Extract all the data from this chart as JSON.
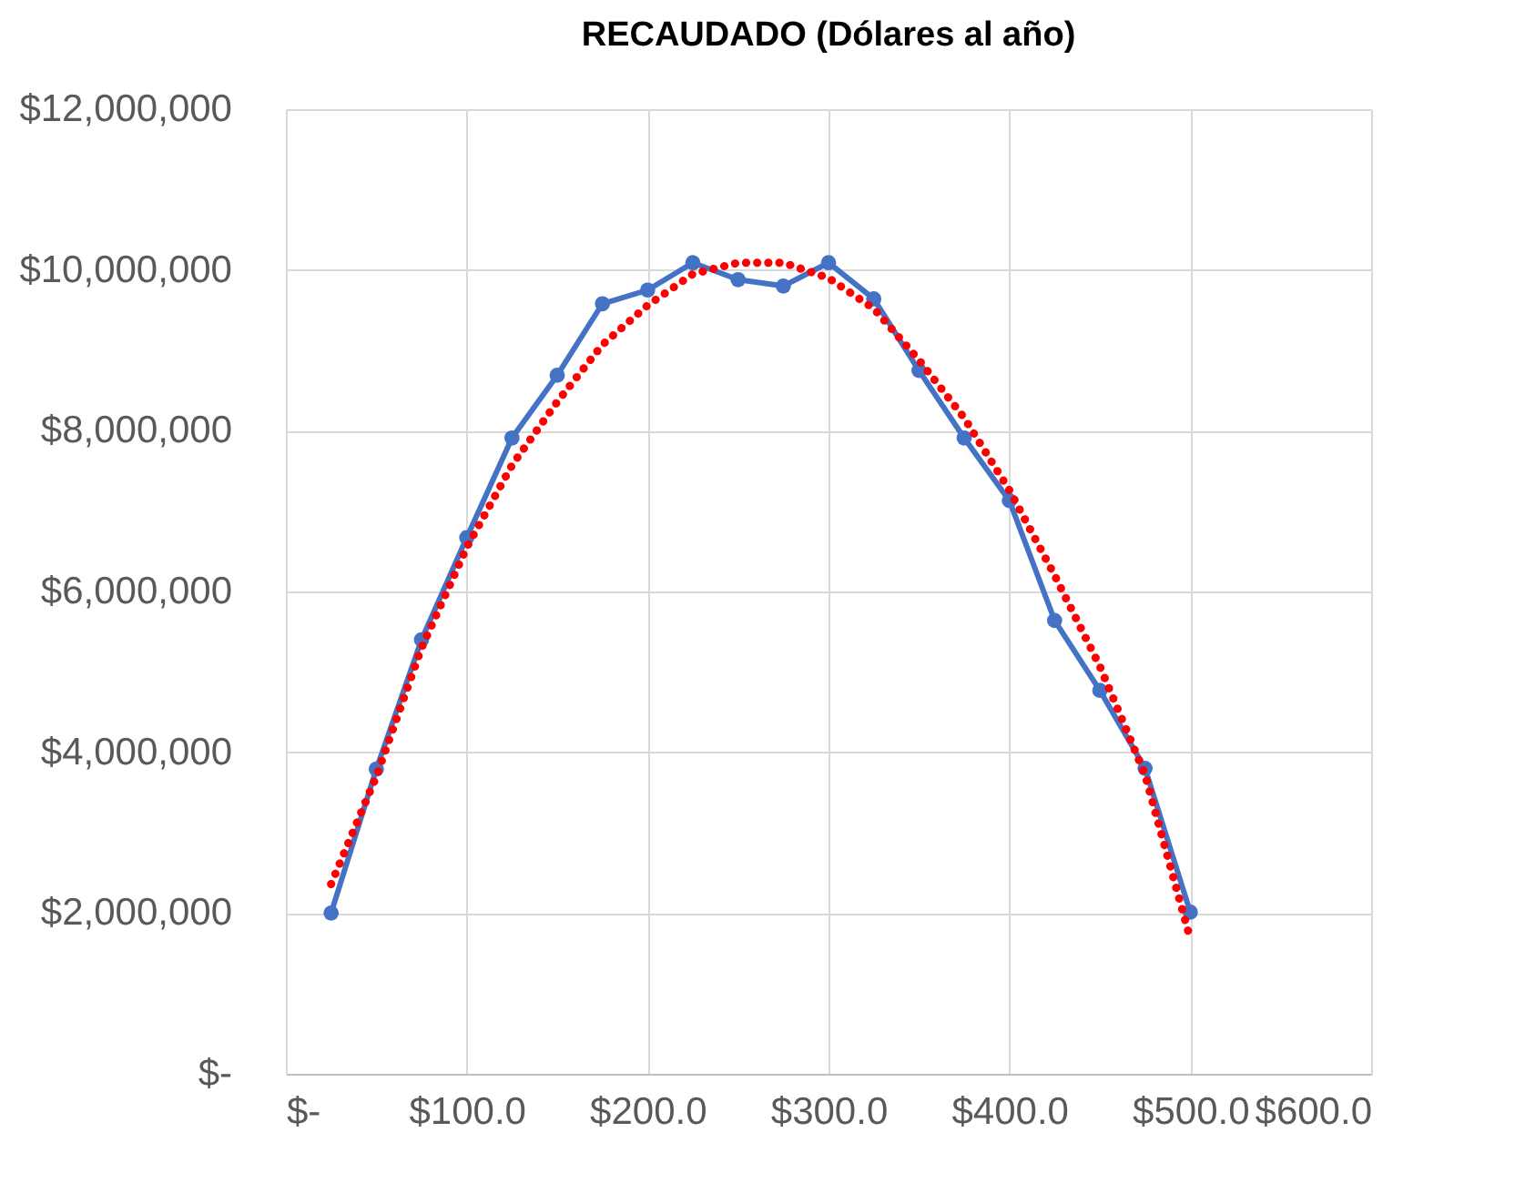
{
  "chart_data": {
    "type": "line",
    "title": "RECAUDADO (Dólares al año)",
    "x": [
      25,
      50,
      75,
      100,
      125,
      150,
      175,
      200,
      225,
      250,
      275,
      300,
      325,
      350,
      375,
      400,
      425,
      450,
      475,
      500
    ],
    "series": [
      {
        "color": "#4472c4",
        "marker": "circle",
        "line_style": "solid",
        "values": [
          2000000.0,
          3790000.0,
          5400000.0,
          6670000.0,
          7910000.0,
          8690000.0,
          9580000.0,
          9750000.0,
          10090000.0,
          9880000.0,
          9800000.0,
          10090000.0,
          9640000.0,
          8750000.0,
          7910000.0,
          7130000.0,
          5640000.0,
          4770000.0,
          3800000.0,
          2010000.0
        ]
      },
      {
        "type": "line",
        "color": "#ff0000",
        "marker": "none",
        "line_style": "dotted",
        "values": [
          2360000.0,
          3700000.0,
          5300000.0,
          6550000.0,
          7570000.0,
          8360000.0,
          9070000.0,
          9560000.0,
          9950000.0,
          10090000.0,
          10090000.0,
          9900000.0,
          9520000.0,
          8880000.0,
          8160000.0,
          7260000.0,
          6200000.0,
          5070000.0,
          3720000.0,
          1680000.0
        ]
      }
    ],
    "xlim": [
      0,
      600
    ],
    "xticks": [
      {
        "value": 0,
        "label": "$-"
      },
      {
        "value": 100,
        "label": "$100.0"
      },
      {
        "value": 200,
        "label": "$200.0"
      },
      {
        "value": 300,
        "label": "$300.0"
      },
      {
        "value": 400,
        "label": "$400.0"
      },
      {
        "value": 500,
        "label": "$500.0"
      },
      {
        "value": 600,
        "label": "$600.0"
      }
    ],
    "ylim": [
      0,
      12000000
    ],
    "yticks": [
      {
        "value": 0,
        "label": "$-"
      },
      {
        "value": 2000000,
        "label": "$2,000,000"
      },
      {
        "value": 4000000,
        "label": "$4,000,000"
      },
      {
        "value": 6000000,
        "label": "$6,000,000"
      },
      {
        "value": 8000000,
        "label": "$8,000,000"
      },
      {
        "value": 10000000,
        "label": "$10,000,000"
      },
      {
        "value": 12000000,
        "label": "$12,000,000"
      }
    ],
    "grid": true
  }
}
